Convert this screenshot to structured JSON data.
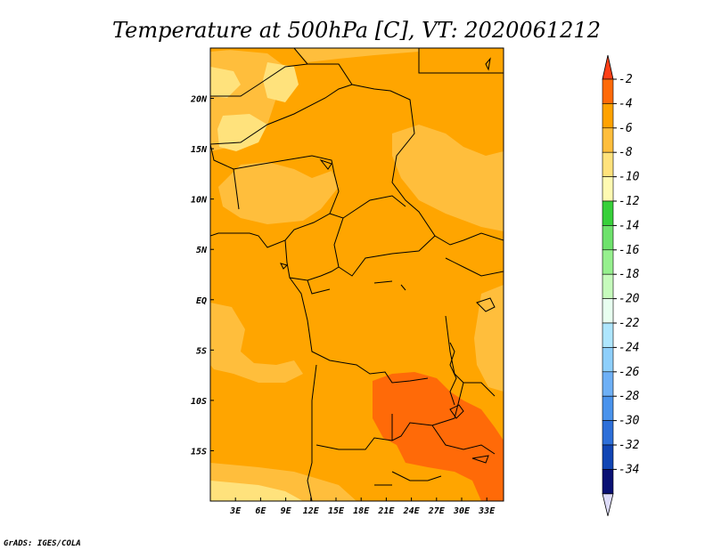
{
  "title": "Temperature at 500hPa [C], VT: 2020061212",
  "credit": "GrADS: IGES/COLA",
  "map": {
    "variable": "Temperature at 500hPa",
    "units": "C",
    "valid_time": "2020061212",
    "lon_range": [
      0,
      35
    ],
    "lat_range": [
      -20,
      25
    ],
    "lon_ticks": [
      "3E",
      "6E",
      "9E",
      "12E",
      "15E",
      "18E",
      "21E",
      "24E",
      "27E",
      "30E",
      "33E"
    ],
    "lat_ticks": [
      "20N",
      "15N",
      "10N",
      "5N",
      "EQ",
      "5S",
      "10S",
      "15S"
    ]
  },
  "colorbar": {
    "labels": [
      "-2",
      "-4",
      "-6",
      "-8",
      "-10",
      "-12",
      "-14",
      "-16",
      "-18",
      "-20",
      "-22",
      "-24",
      "-26",
      "-28",
      "-30",
      "-32",
      "-34"
    ],
    "top_arrow_color": "#ff3f16",
    "bottom_arrow_color": "#dedcfa",
    "colors": [
      "#ff6a08",
      "#ffa200",
      "#ffbe3c",
      "#ffe27c",
      "#fffab2",
      "#37d03a",
      "#6ee26c",
      "#96f08e",
      "#c6fbbc",
      "#e8fff0",
      "#aee6fe",
      "#8ecffb",
      "#6eb0f6",
      "#4a93ec",
      "#2d6fd9",
      "#1145b4",
      "#0a1174"
    ]
  },
  "colors": {
    "background": "#ffa500",
    "warm": "#ff6a08",
    "cool": "#ffbe3c",
    "coolest": "#ffe27c",
    "boundary": "#000000"
  }
}
